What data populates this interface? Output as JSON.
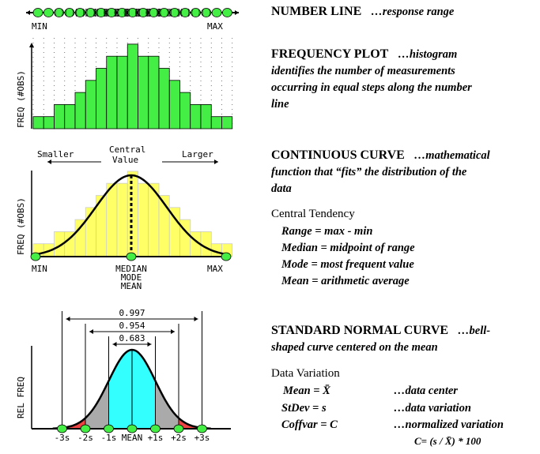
{
  "number_line": {
    "min_label": "MIN",
    "max_label": "MAX",
    "title": "NUMBER LINE",
    "desc": "…response range"
  },
  "frequency_plot": {
    "ylabel": "FREQ (#OBS)",
    "histogram_levels": [
      1,
      1,
      2,
      2,
      3,
      4,
      5,
      6,
      6,
      7,
      6,
      6,
      5,
      4,
      3,
      2,
      2,
      1,
      1
    ],
    "bar_color": "#44ee44",
    "title": "FREQUENCY PLOT",
    "desc": "…histogram",
    "lines": [
      "identifies the number of measurements",
      "occurring in equal steps along the number",
      "line"
    ]
  },
  "continuous_curve": {
    "ylabel": "FREQ (#OBS)",
    "smaller": "Smaller",
    "central": [
      "Central",
      "Value"
    ],
    "larger": "Larger",
    "min_label": "MIN",
    "center_labels": [
      "MEDIAN",
      "MODE",
      "MEAN"
    ],
    "max_label": "MAX",
    "bar_color": "#ffff66",
    "title": "CONTINUOUS CURVE",
    "desc": "…mathematical",
    "lines": [
      "function that “fits” the distribution of the",
      "data"
    ],
    "central_tendency": {
      "heading": "Central Tendency",
      "items": [
        "Range = max - min",
        "Median = midpoint of range",
        "Mode = most frequent value",
        "Mean = arithmetic average"
      ]
    }
  },
  "normal_curve": {
    "ylabel": "REL FREQ",
    "intervals": [
      "0.997",
      "0.954",
      "0.683"
    ],
    "ticks": [
      "-3s",
      "-2s",
      "-1s",
      "MEAN",
      "+1s",
      "+2s",
      "+3s"
    ],
    "colors": {
      "one_sigma": "#33ffff",
      "two_sigma": "#aaaaaa",
      "three_sigma": "#ee4444"
    },
    "title": "STANDARD NORMAL CURVE",
    "desc": "…bell-",
    "lines": [
      "shaped curve centered on the mean"
    ],
    "variation": {
      "heading": "Data Variation",
      "rows": [
        {
          "term": "Mean = X̄",
          "desc": "…data center"
        },
        {
          "term": "StDev = s",
          "desc": "…data variation"
        },
        {
          "term": "Coffvar = C",
          "desc": "…normalized variation"
        }
      ],
      "formula": "C= (s / X̄) * 100"
    }
  }
}
